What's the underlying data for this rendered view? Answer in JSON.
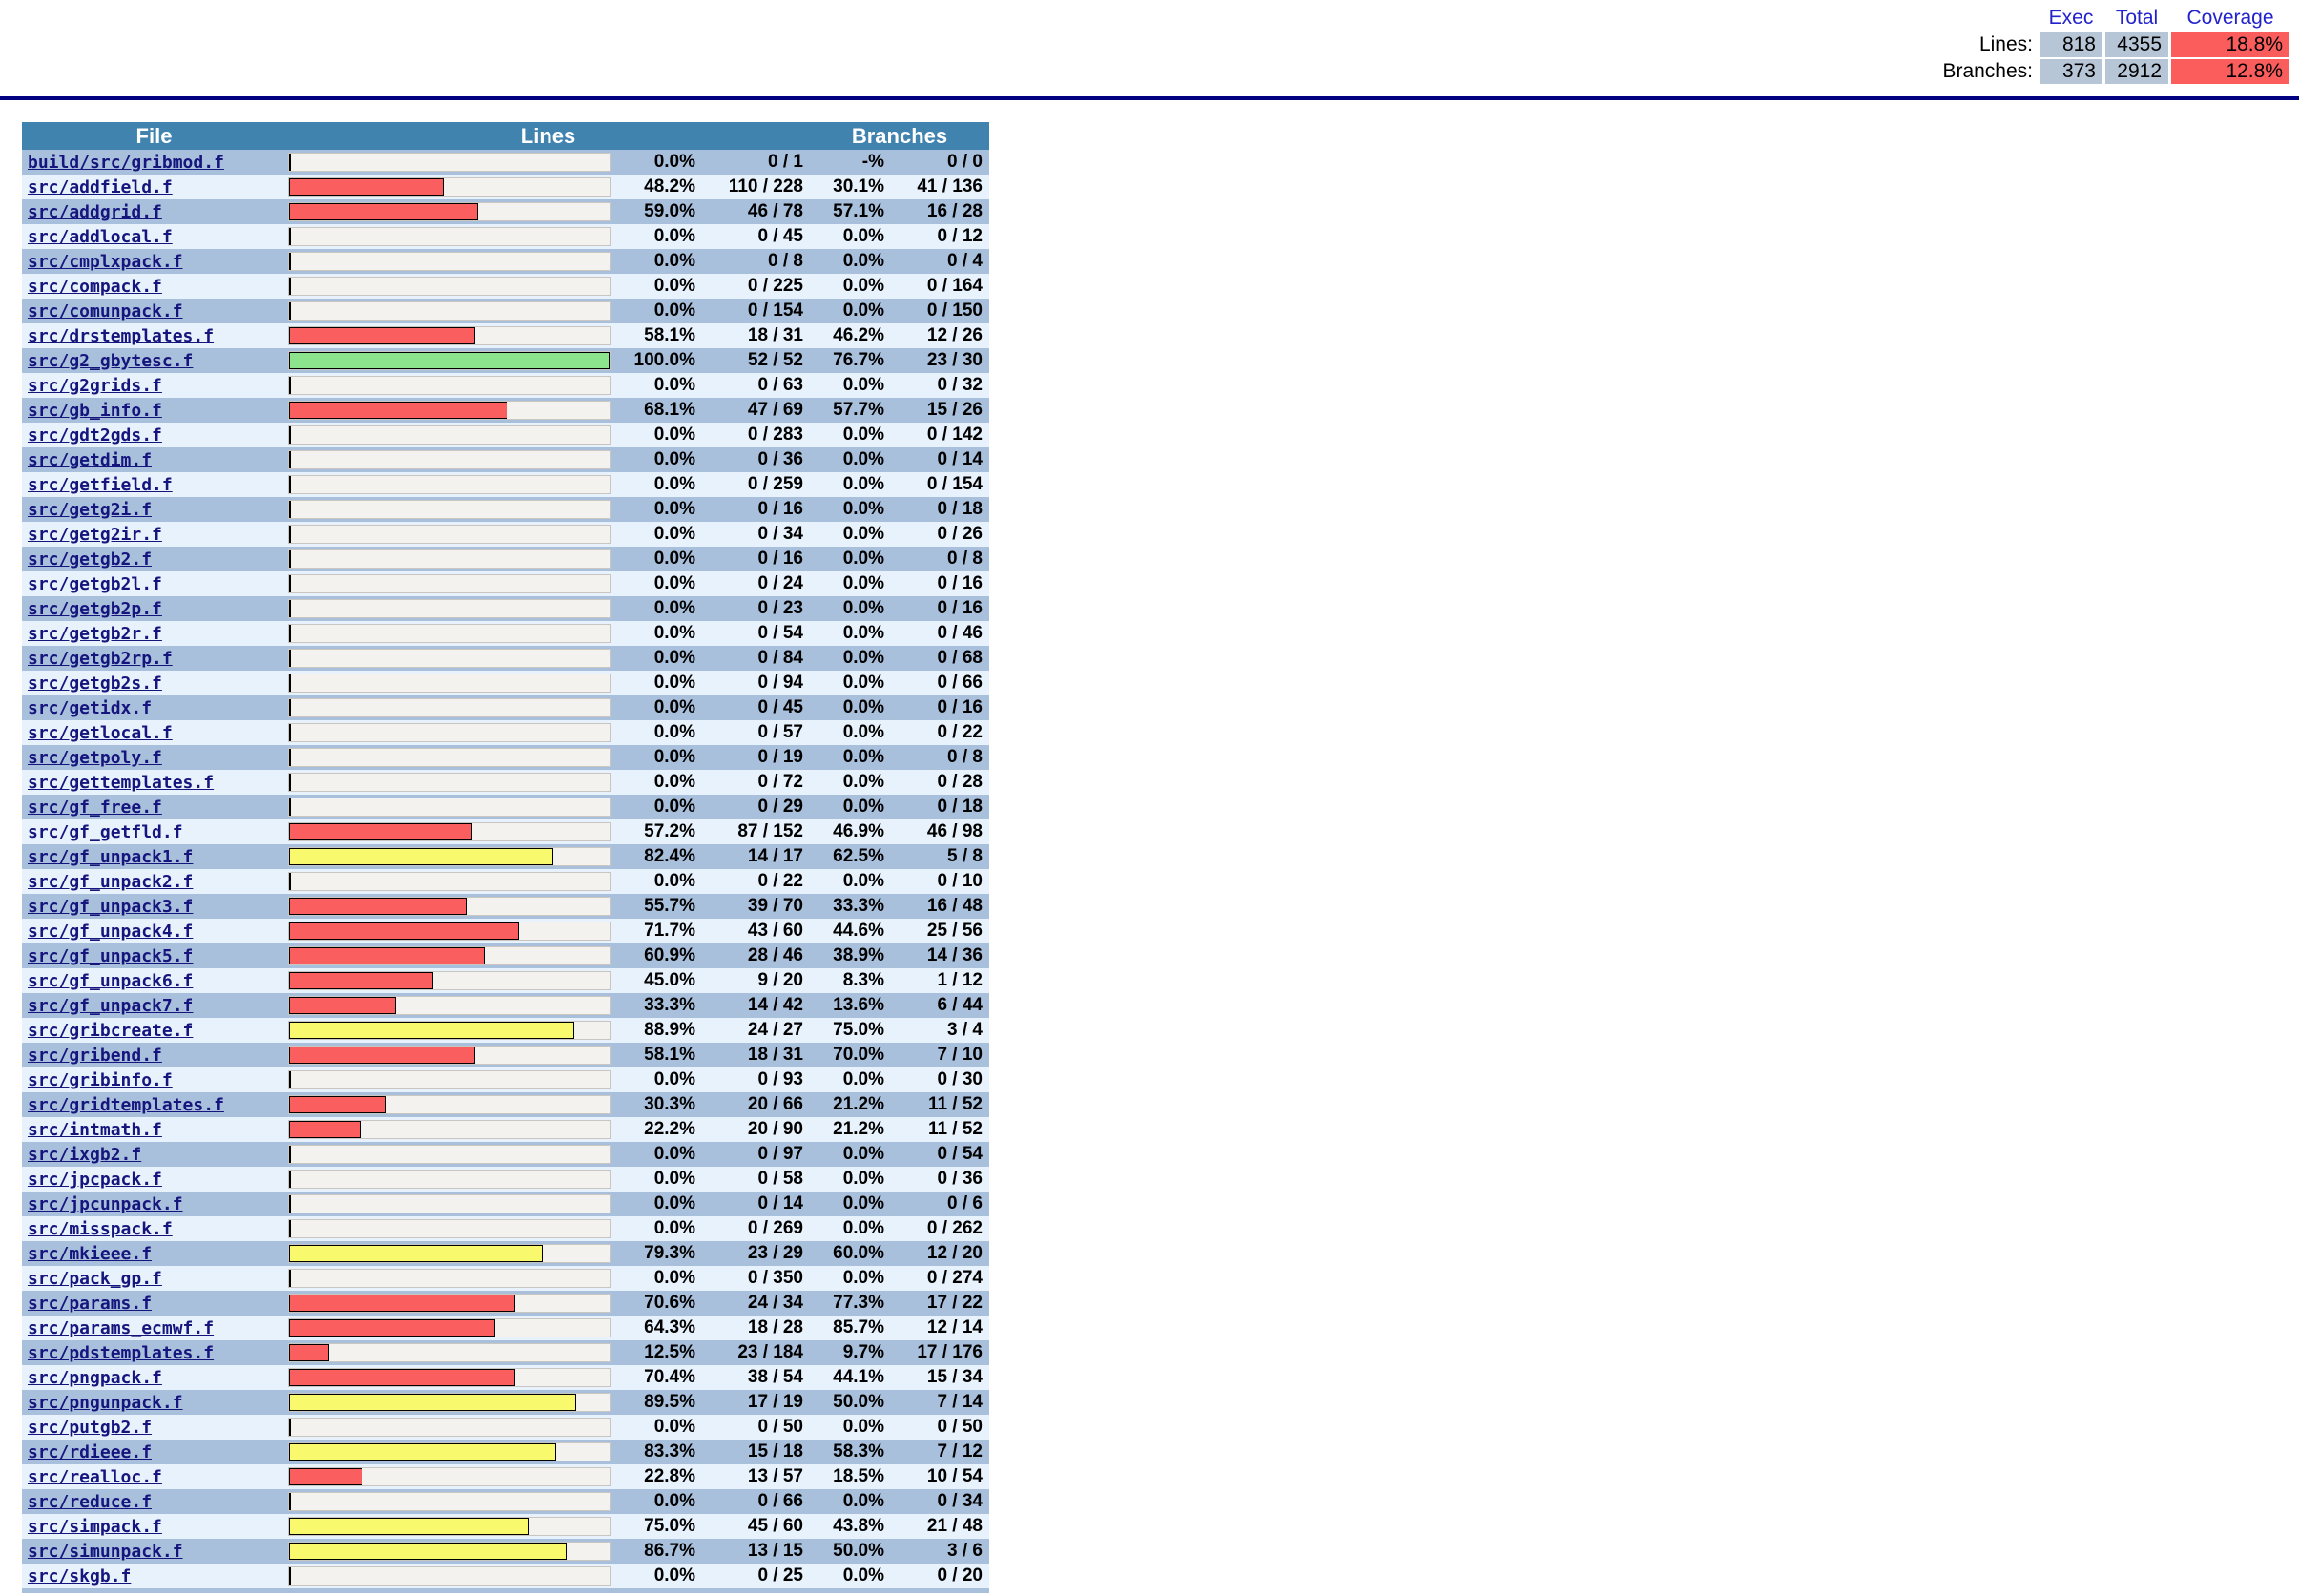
{
  "summary": {
    "col_headers": {
      "exec": "Exec",
      "total": "Total",
      "coverage": "Coverage"
    },
    "rows": [
      {
        "label": "Lines:",
        "exec": "818",
        "total": "4355",
        "coverage": "18.8%"
      },
      {
        "label": "Branches:",
        "exec": "373",
        "total": "2912",
        "coverage": "12.8%"
      }
    ]
  },
  "table": {
    "headers": {
      "file": "File",
      "lines": "Lines",
      "branches": "Branches"
    },
    "files": [
      {
        "name": "build/src/gribmod.f",
        "lines_pct": "0.0%",
        "lines_ratio": "0 / 1",
        "branches_pct": "-%",
        "branches_ratio": "0 / 0"
      },
      {
        "name": "src/addfield.f",
        "lines_pct": "48.2%",
        "lines_ratio": "110 / 228",
        "branches_pct": "30.1%",
        "branches_ratio": "41 / 136"
      },
      {
        "name": "src/addgrid.f",
        "lines_pct": "59.0%",
        "lines_ratio": "46 / 78",
        "branches_pct": "57.1%",
        "branches_ratio": "16 / 28"
      },
      {
        "name": "src/addlocal.f",
        "lines_pct": "0.0%",
        "lines_ratio": "0 / 45",
        "branches_pct": "0.0%",
        "branches_ratio": "0 / 12"
      },
      {
        "name": "src/cmplxpack.f",
        "lines_pct": "0.0%",
        "lines_ratio": "0 / 8",
        "branches_pct": "0.0%",
        "branches_ratio": "0 / 4"
      },
      {
        "name": "src/compack.f",
        "lines_pct": "0.0%",
        "lines_ratio": "0 / 225",
        "branches_pct": "0.0%",
        "branches_ratio": "0 / 164"
      },
      {
        "name": "src/comunpack.f",
        "lines_pct": "0.0%",
        "lines_ratio": "0 / 154",
        "branches_pct": "0.0%",
        "branches_ratio": "0 / 150"
      },
      {
        "name": "src/drstemplates.f",
        "lines_pct": "58.1%",
        "lines_ratio": "18 / 31",
        "branches_pct": "46.2%",
        "branches_ratio": "12 / 26"
      },
      {
        "name": "src/g2_gbytesc.f",
        "lines_pct": "100.0%",
        "lines_ratio": "52 / 52",
        "branches_pct": "76.7%",
        "branches_ratio": "23 / 30"
      },
      {
        "name": "src/g2grids.f",
        "lines_pct": "0.0%",
        "lines_ratio": "0 / 63",
        "branches_pct": "0.0%",
        "branches_ratio": "0 / 32"
      },
      {
        "name": "src/gb_info.f",
        "lines_pct": "68.1%",
        "lines_ratio": "47 / 69",
        "branches_pct": "57.7%",
        "branches_ratio": "15 / 26"
      },
      {
        "name": "src/gdt2gds.f",
        "lines_pct": "0.0%",
        "lines_ratio": "0 / 283",
        "branches_pct": "0.0%",
        "branches_ratio": "0 / 142"
      },
      {
        "name": "src/getdim.f",
        "lines_pct": "0.0%",
        "lines_ratio": "0 / 36",
        "branches_pct": "0.0%",
        "branches_ratio": "0 / 14"
      },
      {
        "name": "src/getfield.f",
        "lines_pct": "0.0%",
        "lines_ratio": "0 / 259",
        "branches_pct": "0.0%",
        "branches_ratio": "0 / 154"
      },
      {
        "name": "src/getg2i.f",
        "lines_pct": "0.0%",
        "lines_ratio": "0 / 16",
        "branches_pct": "0.0%",
        "branches_ratio": "0 / 18"
      },
      {
        "name": "src/getg2ir.f",
        "lines_pct": "0.0%",
        "lines_ratio": "0 / 34",
        "branches_pct": "0.0%",
        "branches_ratio": "0 / 26"
      },
      {
        "name": "src/getgb2.f",
        "lines_pct": "0.0%",
        "lines_ratio": "0 / 16",
        "branches_pct": "0.0%",
        "branches_ratio": "0 / 8"
      },
      {
        "name": "src/getgb2l.f",
        "lines_pct": "0.0%",
        "lines_ratio": "0 / 24",
        "branches_pct": "0.0%",
        "branches_ratio": "0 / 16"
      },
      {
        "name": "src/getgb2p.f",
        "lines_pct": "0.0%",
        "lines_ratio": "0 / 23",
        "branches_pct": "0.0%",
        "branches_ratio": "0 / 16"
      },
      {
        "name": "src/getgb2r.f",
        "lines_pct": "0.0%",
        "lines_ratio": "0 / 54",
        "branches_pct": "0.0%",
        "branches_ratio": "0 / 46"
      },
      {
        "name": "src/getgb2rp.f",
        "lines_pct": "0.0%",
        "lines_ratio": "0 / 84",
        "branches_pct": "0.0%",
        "branches_ratio": "0 / 68"
      },
      {
        "name": "src/getgb2s.f",
        "lines_pct": "0.0%",
        "lines_ratio": "0 / 94",
        "branches_pct": "0.0%",
        "branches_ratio": "0 / 66"
      },
      {
        "name": "src/getidx.f",
        "lines_pct": "0.0%",
        "lines_ratio": "0 / 45",
        "branches_pct": "0.0%",
        "branches_ratio": "0 / 16"
      },
      {
        "name": "src/getlocal.f",
        "lines_pct": "0.0%",
        "lines_ratio": "0 / 57",
        "branches_pct": "0.0%",
        "branches_ratio": "0 / 22"
      },
      {
        "name": "src/getpoly.f",
        "lines_pct": "0.0%",
        "lines_ratio": "0 / 19",
        "branches_pct": "0.0%",
        "branches_ratio": "0 / 8"
      },
      {
        "name": "src/gettemplates.f",
        "lines_pct": "0.0%",
        "lines_ratio": "0 / 72",
        "branches_pct": "0.0%",
        "branches_ratio": "0 / 28"
      },
      {
        "name": "src/gf_free.f",
        "lines_pct": "0.0%",
        "lines_ratio": "0 / 29",
        "branches_pct": "0.0%",
        "branches_ratio": "0 / 18"
      },
      {
        "name": "src/gf_getfld.f",
        "lines_pct": "57.2%",
        "lines_ratio": "87 / 152",
        "branches_pct": "46.9%",
        "branches_ratio": "46 / 98"
      },
      {
        "name": "src/gf_unpack1.f",
        "lines_pct": "82.4%",
        "lines_ratio": "14 / 17",
        "branches_pct": "62.5%",
        "branches_ratio": "5 / 8"
      },
      {
        "name": "src/gf_unpack2.f",
        "lines_pct": "0.0%",
        "lines_ratio": "0 / 22",
        "branches_pct": "0.0%",
        "branches_ratio": "0 / 10"
      },
      {
        "name": "src/gf_unpack3.f",
        "lines_pct": "55.7%",
        "lines_ratio": "39 / 70",
        "branches_pct": "33.3%",
        "branches_ratio": "16 / 48"
      },
      {
        "name": "src/gf_unpack4.f",
        "lines_pct": "71.7%",
        "lines_ratio": "43 / 60",
        "branches_pct": "44.6%",
        "branches_ratio": "25 / 56"
      },
      {
        "name": "src/gf_unpack5.f",
        "lines_pct": "60.9%",
        "lines_ratio": "28 / 46",
        "branches_pct": "38.9%",
        "branches_ratio": "14 / 36"
      },
      {
        "name": "src/gf_unpack6.f",
        "lines_pct": "45.0%",
        "lines_ratio": "9 / 20",
        "branches_pct": "8.3%",
        "branches_ratio": "1 / 12"
      },
      {
        "name": "src/gf_unpack7.f",
        "lines_pct": "33.3%",
        "lines_ratio": "14 / 42",
        "branches_pct": "13.6%",
        "branches_ratio": "6 / 44"
      },
      {
        "name": "src/gribcreate.f",
        "lines_pct": "88.9%",
        "lines_ratio": "24 / 27",
        "branches_pct": "75.0%",
        "branches_ratio": "3 / 4"
      },
      {
        "name": "src/gribend.f",
        "lines_pct": "58.1%",
        "lines_ratio": "18 / 31",
        "branches_pct": "70.0%",
        "branches_ratio": "7 / 10"
      },
      {
        "name": "src/gribinfo.f",
        "lines_pct": "0.0%",
        "lines_ratio": "0 / 93",
        "branches_pct": "0.0%",
        "branches_ratio": "0 / 30"
      },
      {
        "name": "src/gridtemplates.f",
        "lines_pct": "30.3%",
        "lines_ratio": "20 / 66",
        "branches_pct": "21.2%",
        "branches_ratio": "11 / 52"
      },
      {
        "name": "src/intmath.f",
        "lines_pct": "22.2%",
        "lines_ratio": "20 / 90",
        "branches_pct": "21.2%",
        "branches_ratio": "11 / 52"
      },
      {
        "name": "src/ixgb2.f",
        "lines_pct": "0.0%",
        "lines_ratio": "0 / 97",
        "branches_pct": "0.0%",
        "branches_ratio": "0 / 54"
      },
      {
        "name": "src/jpcpack.f",
        "lines_pct": "0.0%",
        "lines_ratio": "0 / 58",
        "branches_pct": "0.0%",
        "branches_ratio": "0 / 36"
      },
      {
        "name": "src/jpcunpack.f",
        "lines_pct": "0.0%",
        "lines_ratio": "0 / 14",
        "branches_pct": "0.0%",
        "branches_ratio": "0 / 6"
      },
      {
        "name": "src/misspack.f",
        "lines_pct": "0.0%",
        "lines_ratio": "0 / 269",
        "branches_pct": "0.0%",
        "branches_ratio": "0 / 262"
      },
      {
        "name": "src/mkieee.f",
        "lines_pct": "79.3%",
        "lines_ratio": "23 / 29",
        "branches_pct": "60.0%",
        "branches_ratio": "12 / 20"
      },
      {
        "name": "src/pack_gp.f",
        "lines_pct": "0.0%",
        "lines_ratio": "0 / 350",
        "branches_pct": "0.0%",
        "branches_ratio": "0 / 274"
      },
      {
        "name": "src/params.f",
        "lines_pct": "70.6%",
        "lines_ratio": "24 / 34",
        "branches_pct": "77.3%",
        "branches_ratio": "17 / 22"
      },
      {
        "name": "src/params_ecmwf.f",
        "lines_pct": "64.3%",
        "lines_ratio": "18 / 28",
        "branches_pct": "85.7%",
        "branches_ratio": "12 / 14"
      },
      {
        "name": "src/pdstemplates.f",
        "lines_pct": "12.5%",
        "lines_ratio": "23 / 184",
        "branches_pct": "9.7%",
        "branches_ratio": "17 / 176"
      },
      {
        "name": "src/pngpack.f",
        "lines_pct": "70.4%",
        "lines_ratio": "38 / 54",
        "branches_pct": "44.1%",
        "branches_ratio": "15 / 34"
      },
      {
        "name": "src/pngunpack.f",
        "lines_pct": "89.5%",
        "lines_ratio": "17 / 19",
        "branches_pct": "50.0%",
        "branches_ratio": "7 / 14"
      },
      {
        "name": "src/putgb2.f",
        "lines_pct": "0.0%",
        "lines_ratio": "0 / 50",
        "branches_pct": "0.0%",
        "branches_ratio": "0 / 50"
      },
      {
        "name": "src/rdieee.f",
        "lines_pct": "83.3%",
        "lines_ratio": "15 / 18",
        "branches_pct": "58.3%",
        "branches_ratio": "7 / 12"
      },
      {
        "name": "src/realloc.f",
        "lines_pct": "22.8%",
        "lines_ratio": "13 / 57",
        "branches_pct": "18.5%",
        "branches_ratio": "10 / 54"
      },
      {
        "name": "src/reduce.f",
        "lines_pct": "0.0%",
        "lines_ratio": "0 / 66",
        "branches_pct": "0.0%",
        "branches_ratio": "0 / 34"
      },
      {
        "name": "src/simpack.f",
        "lines_pct": "75.0%",
        "lines_ratio": "45 / 60",
        "branches_pct": "43.8%",
        "branches_ratio": "21 / 48"
      },
      {
        "name": "src/simunpack.f",
        "lines_pct": "86.7%",
        "lines_ratio": "13 / 15",
        "branches_pct": "50.0%",
        "branches_ratio": "3 / 6"
      },
      {
        "name": "src/skgb.f",
        "lines_pct": "0.0%",
        "lines_ratio": "0 / 25",
        "branches_pct": "0.0%",
        "branches_ratio": "0 / 20"
      }
    ]
  },
  "colors": {
    "bar_low": "#fb5e5e",
    "bar_med": "#f9f96e",
    "bar_high": "#8ce48c",
    "coverage_low_bg": "#fb5d5d",
    "summary_value_bg": "#b7c6d7",
    "table_header_bg": "#4183af",
    "rule": "#000080",
    "link": "#15157d"
  }
}
